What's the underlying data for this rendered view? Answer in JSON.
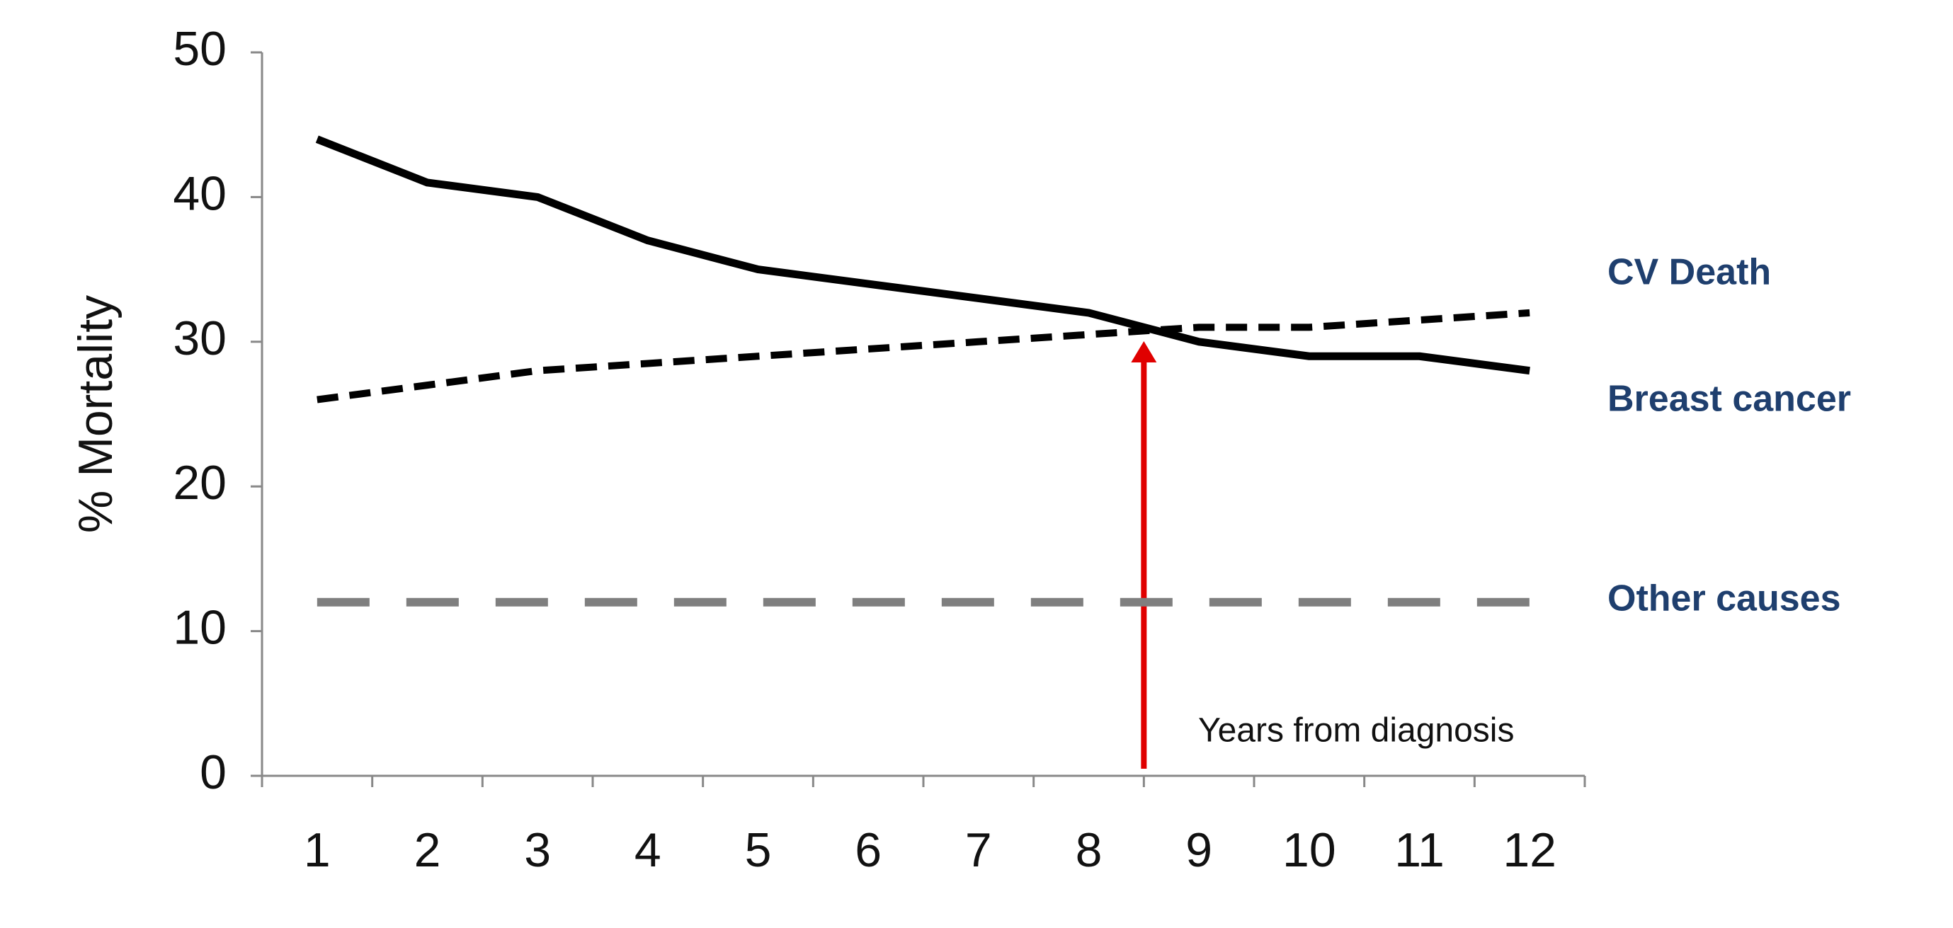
{
  "chart_data": {
    "type": "line",
    "x_label": "Years from diagnosis",
    "y_label": "% Mortality",
    "categories": [
      "1",
      "2",
      "3",
      "4",
      "5",
      "6",
      "7",
      "8",
      "9",
      "10",
      "11",
      "12"
    ],
    "series": [
      {
        "name": "CV Death",
        "color": "#000000",
        "style": "dashed",
        "values": [
          26,
          27,
          28,
          28.5,
          29,
          29.5,
          30,
          30.5,
          31,
          31,
          31.5,
          32
        ]
      },
      {
        "name": "Breast cancer",
        "color": "#000000",
        "style": "solid",
        "values": [
          44,
          41,
          40,
          37,
          35,
          34,
          33,
          32,
          30,
          29,
          29,
          28
        ]
      },
      {
        "name": "Other causes",
        "color": "#7f7f7f",
        "style": "long-dashed",
        "values": [
          12,
          12,
          12,
          12,
          12,
          12,
          12,
          12,
          12,
          12,
          12,
          12
        ]
      }
    ],
    "ylim": [
      0,
      50
    ],
    "yticks": [
      0,
      10,
      20,
      30,
      40,
      50
    ]
  }
}
